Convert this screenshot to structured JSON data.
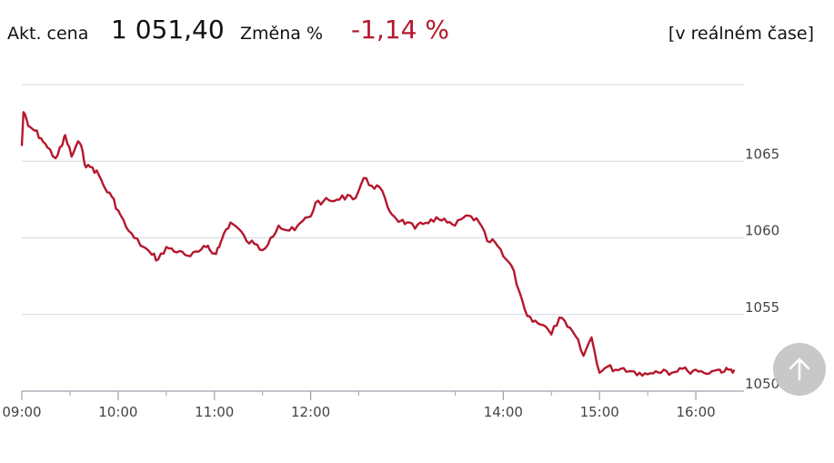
{
  "header": {
    "price_label": "Akt. cena",
    "price_value": "1 051,40",
    "change_label": "Změna %",
    "change_value": "-1,14 %",
    "realtime_label": "[v reálném čase]"
  },
  "colors": {
    "line": "#b5172d",
    "change_negative": "#b5172d",
    "grid": "#cfd8e0",
    "axis": "#9aa4ad"
  },
  "scroll_top_button": {
    "icon": "arrow-up-icon"
  },
  "chart_data": {
    "type": "line",
    "title": "",
    "xlabel": "",
    "ylabel": "",
    "ylim": [
      1050,
      1070
    ],
    "xlim": [
      "09:00",
      "16:30"
    ],
    "y_ticks": [
      {
        "value": 1050,
        "label": "1050"
      },
      {
        "value": 1055,
        "label": "1055"
      },
      {
        "value": 1060,
        "label": "1060"
      },
      {
        "value": 1065,
        "label": "1065"
      }
    ],
    "x_ticks": [
      {
        "value": "09:00",
        "label": "09:00"
      },
      {
        "value": "10:00",
        "label": "10:00"
      },
      {
        "value": "11:00",
        "label": "11:00"
      },
      {
        "value": "12:00",
        "label": "12:00"
      },
      {
        "value": "14:00",
        "label": "14:00"
      },
      {
        "value": "15:00",
        "label": "15:00"
      },
      {
        "value": "16:00",
        "label": "16:00"
      }
    ],
    "grid": true,
    "series": [
      {
        "x": [
          "09:00",
          "09:01",
          "09:04",
          "09:08",
          "09:12",
          "09:16",
          "09:21",
          "09:25",
          "09:27",
          "09:31",
          "09:35",
          "09:38",
          "09:40",
          "09:44",
          "09:48",
          "09:52",
          "09:56",
          "10:00",
          "10:05",
          "10:10",
          "10:16",
          "10:21",
          "10:25",
          "10:30",
          "10:35",
          "10:40",
          "10:45",
          "10:50",
          "10:55",
          "10:58",
          "11:00",
          "11:03",
          "11:06",
          "11:10",
          "11:15",
          "11:20",
          "11:25",
          "11:30",
          "11:35",
          "11:40",
          "11:45",
          "11:50",
          "11:55",
          "12:00",
          "12:03",
          "12:08",
          "12:13",
          "12:18",
          "12:23",
          "12:28",
          "12:33",
          "12:38",
          "12:43",
          "12:48",
          "12:52",
          "12:56",
          "13:00",
          "13:05",
          "13:10",
          "13:15",
          "13:20",
          "13:25",
          "13:30",
          "13:35",
          "13:40",
          "13:45",
          "13:50",
          "13:55",
          "14:00",
          "14:05",
          "14:10",
          "14:15",
          "14:20",
          "14:25",
          "14:30",
          "14:35",
          "14:40",
          "14:45",
          "14:50",
          "14:55",
          "15:00",
          "15:05",
          "15:10",
          "15:15",
          "15:20",
          "15:25",
          "15:30",
          "15:35",
          "15:40",
          "15:45",
          "15:50",
          "15:55",
          "16:00",
          "16:05",
          "16:10",
          "16:15",
          "16:18",
          "16:21",
          "16:24"
        ],
        "values": [
          1066.0,
          1068.2,
          1067.3,
          1067.0,
          1066.5,
          1065.9,
          1065.2,
          1066.0,
          1066.7,
          1065.3,
          1066.3,
          1065.6,
          1064.6,
          1064.6,
          1064.1,
          1063.2,
          1062.7,
          1061.8,
          1060.7,
          1060.0,
          1059.4,
          1058.9,
          1058.6,
          1059.4,
          1059.1,
          1059.1,
          1058.8,
          1059.1,
          1059.4,
          1059.1,
          1059.0,
          1059.4,
          1060.3,
          1061.0,
          1060.6,
          1059.8,
          1059.6,
          1059.2,
          1060.0,
          1060.8,
          1060.5,
          1060.5,
          1061.1,
          1061.4,
          1062.3,
          1062.4,
          1062.4,
          1062.5,
          1062.8,
          1062.6,
          1063.9,
          1063.4,
          1063.3,
          1062.0,
          1061.4,
          1061.1,
          1061.0,
          1060.6,
          1060.9,
          1061.2,
          1061.2,
          1061.0,
          1060.8,
          1061.3,
          1061.4,
          1061.0,
          1059.8,
          1059.7,
          1058.8,
          1058.2,
          1056.5,
          1054.9,
          1054.6,
          1054.3,
          1053.7,
          1054.8,
          1054.2,
          1053.6,
          1052.3,
          1053.5,
          1051.2,
          1051.6,
          1051.4,
          1051.5,
          1051.3,
          1051.2,
          1051.1,
          1051.3,
          1051.4,
          1051.2,
          1051.5,
          1051.3,
          1051.4,
          1051.2,
          1051.3,
          1051.4,
          1051.3,
          1051.4,
          1051.4
        ]
      }
    ]
  }
}
